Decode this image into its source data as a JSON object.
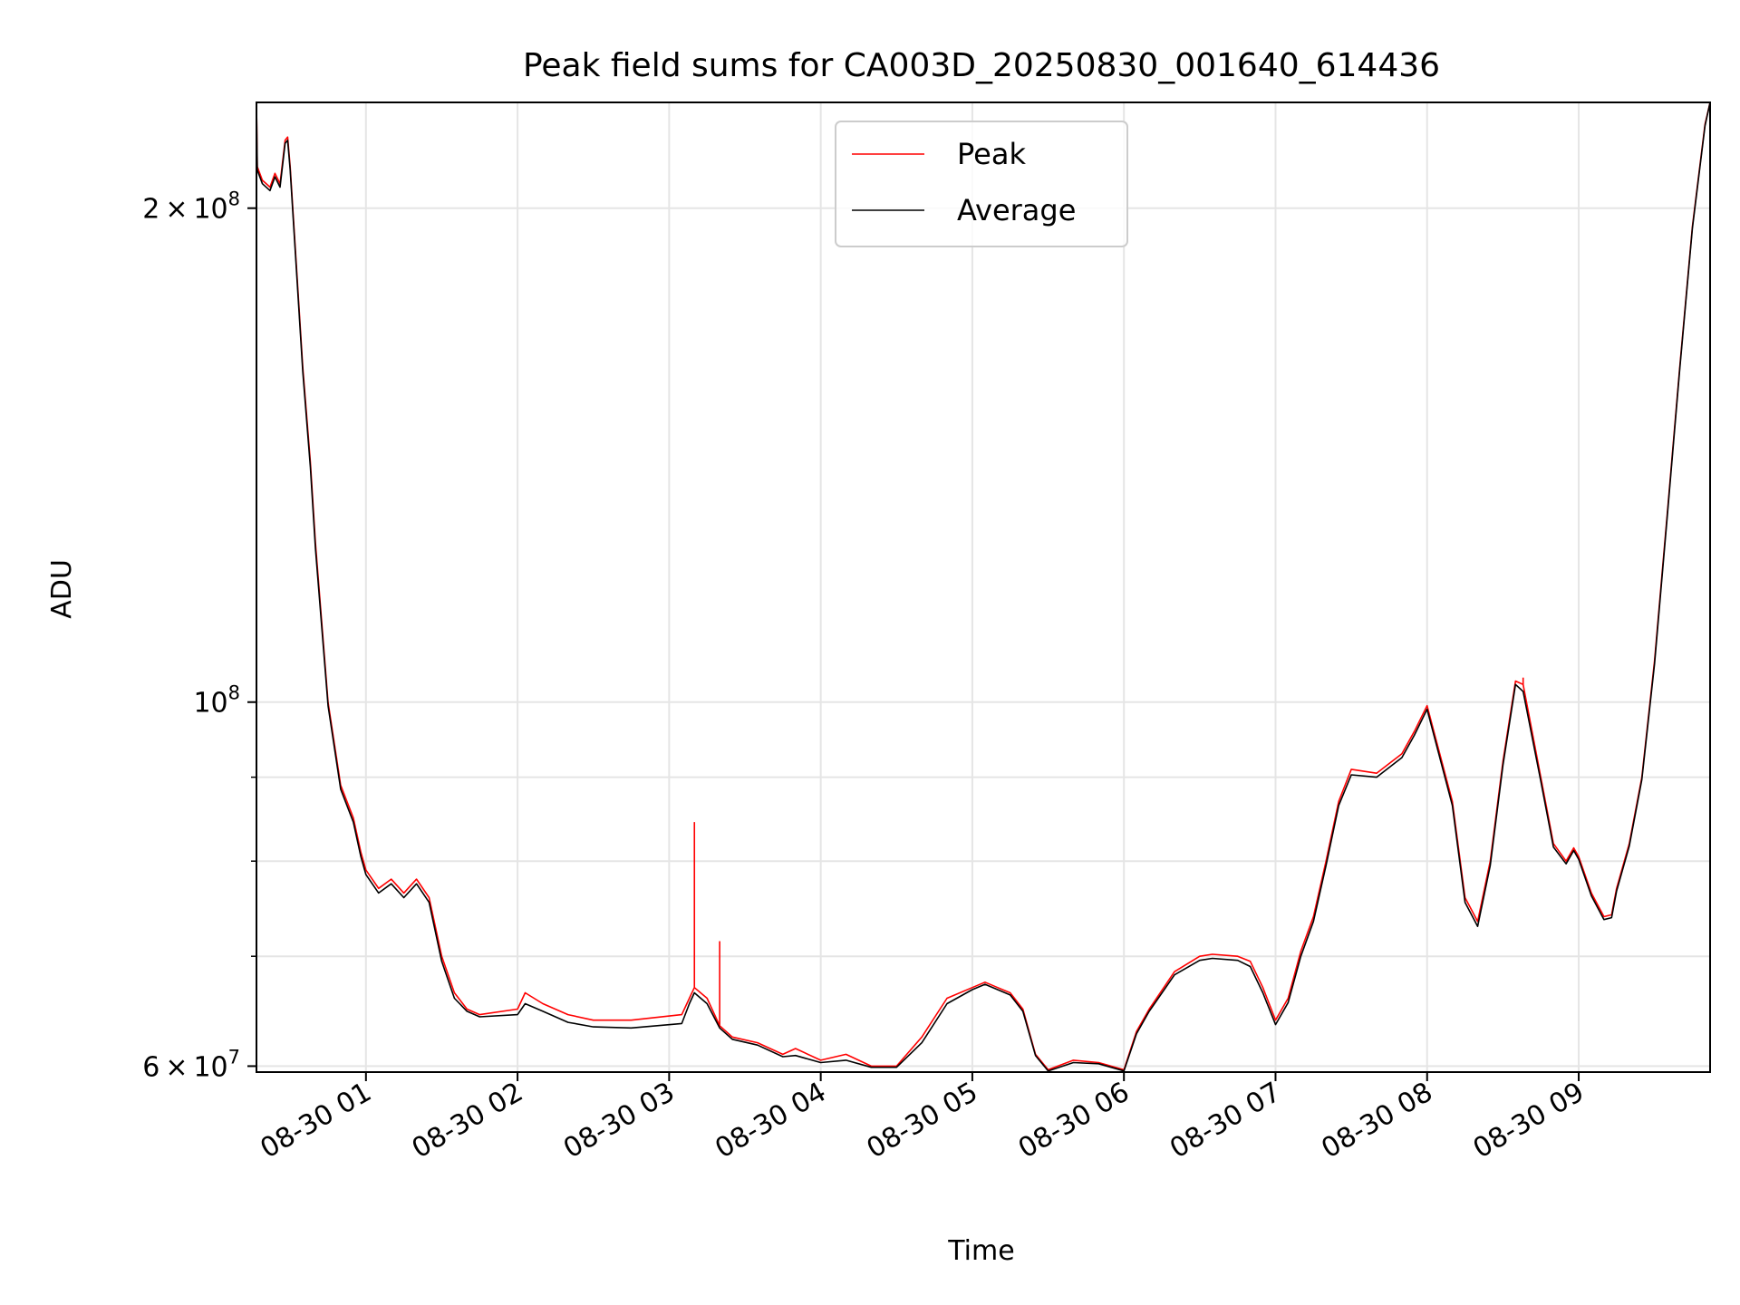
{
  "chart_data": {
    "type": "line",
    "title": "Peak field sums for CA003D_20250830_001640_614436",
    "xlabel": "Time",
    "ylabel": "ADU",
    "yscale": "log",
    "grid": true,
    "legend_loc": "upper center",
    "xlim": [
      "2025-08-30 00:16:40",
      "2025-08-30 09:52:00"
    ],
    "ylim": [
      59500000,
      232000000
    ],
    "x_ticks": [
      {
        "t": "2025-08-30 01:00",
        "label": "08-30 01"
      },
      {
        "t": "2025-08-30 02:00",
        "label": "08-30 02"
      },
      {
        "t": "2025-08-30 03:00",
        "label": "08-30 03"
      },
      {
        "t": "2025-08-30 04:00",
        "label": "08-30 04"
      },
      {
        "t": "2025-08-30 05:00",
        "label": "08-30 05"
      },
      {
        "t": "2025-08-30 06:00",
        "label": "08-30 06"
      },
      {
        "t": "2025-08-30 07:00",
        "label": "08-30 07"
      },
      {
        "t": "2025-08-30 08:00",
        "label": "08-30 08"
      },
      {
        "t": "2025-08-30 09:00",
        "label": "08-30 09"
      }
    ],
    "y_major_ticks": [
      {
        "value": 60000000,
        "mantissa": "6 × 10",
        "exp": "7"
      },
      {
        "value": 100000000,
        "mantissa": "10",
        "exp": "8"
      },
      {
        "value": 200000000,
        "mantissa": "2 × 10",
        "exp": "8"
      }
    ],
    "y_minor_ticks": [
      70000000,
      80000000,
      90000000
    ],
    "series": [
      {
        "name": "Peak",
        "color": "#ff0000",
        "x": [
          "2025-08-30 00:16:40",
          "2025-08-30 00:17:00",
          "2025-08-30 00:19:00",
          "2025-08-30 00:22:00",
          "2025-08-30 00:24:00",
          "2025-08-30 00:26:00",
          "2025-08-30 00:28:00",
          "2025-08-30 00:29:00",
          "2025-08-30 00:30:00",
          "2025-08-30 00:35:00",
          "2025-08-30 00:38:00",
          "2025-08-30 00:40:00",
          "2025-08-30 00:45:00",
          "2025-08-30 00:50:00",
          "2025-08-30 00:55:00",
          "2025-08-30 00:58:00",
          "2025-08-30 01:00:00",
          "2025-08-30 01:05:00",
          "2025-08-30 01:10:00",
          "2025-08-30 01:15:00",
          "2025-08-30 01:20:00",
          "2025-08-30 01:25:00",
          "2025-08-30 01:30:00",
          "2025-08-30 01:35:00",
          "2025-08-30 01:40:00",
          "2025-08-30 01:45:00",
          "2025-08-30 02:00:00",
          "2025-08-30 02:03:00",
          "2025-08-30 02:10:00",
          "2025-08-30 02:20:00",
          "2025-08-30 02:30:00",
          "2025-08-30 02:45:00",
          "2025-08-30 03:05:00",
          "2025-08-30 03:08:00",
          "2025-08-30 03:10:00",
          "2025-08-30 03:15:00",
          "2025-08-30 03:20:00",
          "2025-08-30 03:25:00",
          "2025-08-30 03:35:00",
          "2025-08-30 03:45:00",
          "2025-08-30 03:50:00",
          "2025-08-30 04:00:00",
          "2025-08-30 04:10:00",
          "2025-08-30 04:20:00",
          "2025-08-30 04:30:00",
          "2025-08-30 04:40:00",
          "2025-08-30 04:50:00",
          "2025-08-30 05:00:00",
          "2025-08-30 05:05:00",
          "2025-08-30 05:10:00",
          "2025-08-30 05:15:00",
          "2025-08-30 05:20:00",
          "2025-08-30 05:25:00",
          "2025-08-30 05:30:00",
          "2025-08-30 05:40:00",
          "2025-08-30 05:50:00",
          "2025-08-30 06:00:00",
          "2025-08-30 06:05:00",
          "2025-08-30 06:10:00",
          "2025-08-30 06:20:00",
          "2025-08-30 06:30:00",
          "2025-08-30 06:35:00",
          "2025-08-30 06:45:00",
          "2025-08-30 06:50:00",
          "2025-08-30 06:55:00",
          "2025-08-30 07:00:00",
          "2025-08-30 07:05:00",
          "2025-08-30 07:10:00",
          "2025-08-30 07:15:00",
          "2025-08-30 07:20:00",
          "2025-08-30 07:25:00",
          "2025-08-30 07:30:00",
          "2025-08-30 07:40:00",
          "2025-08-30 07:50:00",
          "2025-08-30 07:55:00",
          "2025-08-30 08:00:00",
          "2025-08-30 08:10:00",
          "2025-08-30 08:15:00",
          "2025-08-30 08:20:00",
          "2025-08-30 08:25:00",
          "2025-08-30 08:30:00",
          "2025-08-30 08:35:00",
          "2025-08-30 08:38:00",
          "2025-08-30 08:45:00",
          "2025-08-30 08:50:00",
          "2025-08-30 08:55:00",
          "2025-08-30 08:58:00",
          "2025-08-30 09:00:00",
          "2025-08-30 09:05:00",
          "2025-08-30 09:10:00",
          "2025-08-30 09:13:00",
          "2025-08-30 09:15:00",
          "2025-08-30 09:20:00",
          "2025-08-30 09:25:00",
          "2025-08-30 09:30:00",
          "2025-08-30 09:35:00",
          "2025-08-30 09:40:00",
          "2025-08-30 09:45:00",
          "2025-08-30 09:50:00",
          "2025-08-30 09:52:00"
        ],
        "y": [
          232000000,
          212000000,
          208000000,
          206000000,
          210000000,
          207000000,
          220000000,
          221000000,
          212000000,
          160000000,
          140000000,
          125000000,
          100000000,
          89000000,
          85000000,
          81000000,
          79000000,
          77000000,
          78000000,
          76500000,
          78000000,
          76000000,
          70000000,
          66500000,
          65000000,
          64500000,
          65000000,
          66500000,
          65500000,
          64500000,
          64000000,
          64000000,
          64500000,
          66000000,
          67000000,
          66000000,
          63500000,
          62500000,
          62000000,
          61000000,
          61500000,
          60500000,
          61000000,
          60000000,
          60000000,
          62500000,
          66000000,
          67000000,
          67500000,
          67000000,
          66500000,
          65000000,
          61000000,
          59700000,
          60500000,
          60300000,
          59700000,
          63000000,
          65000000,
          68500000,
          70000000,
          70200000,
          70000000,
          69500000,
          67000000,
          64000000,
          66000000,
          70500000,
          74000000,
          80000000,
          87000000,
          91000000,
          90500000,
          93000000,
          96000000,
          99500000,
          87000000,
          76000000,
          73500000,
          80000000,
          92000000,
          103000000,
          102500000,
          90000000,
          82000000,
          80000000,
          81500000,
          80500000,
          76500000,
          74000000,
          74200000,
          77000000,
          82000000,
          90000000,
          106000000,
          130000000,
          160000000,
          195000000,
          225000000,
          232000000
        ],
        "spikes": [
          {
            "t": "2025-08-30 03:10:00",
            "y": 84500000
          },
          {
            "t": "2025-08-30 03:20:00",
            "y": 71500000
          },
          {
            "t": "2025-08-30 08:38:00",
            "y": 103500000
          }
        ]
      },
      {
        "name": "Average",
        "color": "#000000",
        "x": [
          "2025-08-30 00:16:40",
          "2025-08-30 00:17:00",
          "2025-08-30 00:19:00",
          "2025-08-30 00:22:00",
          "2025-08-30 00:24:00",
          "2025-08-30 00:26:00",
          "2025-08-30 00:28:00",
          "2025-08-30 00:29:00",
          "2025-08-30 00:30:00",
          "2025-08-30 00:35:00",
          "2025-08-30 00:38:00",
          "2025-08-30 00:40:00",
          "2025-08-30 00:45:00",
          "2025-08-30 00:50:00",
          "2025-08-30 00:55:00",
          "2025-08-30 00:58:00",
          "2025-08-30 01:00:00",
          "2025-08-30 01:05:00",
          "2025-08-30 01:10:00",
          "2025-08-30 01:15:00",
          "2025-08-30 01:20:00",
          "2025-08-30 01:25:00",
          "2025-08-30 01:30:00",
          "2025-08-30 01:35:00",
          "2025-08-30 01:40:00",
          "2025-08-30 01:45:00",
          "2025-08-30 02:00:00",
          "2025-08-30 02:03:00",
          "2025-08-30 02:10:00",
          "2025-08-30 02:20:00",
          "2025-08-30 02:30:00",
          "2025-08-30 02:45:00",
          "2025-08-30 03:05:00",
          "2025-08-30 03:08:00",
          "2025-08-30 03:10:00",
          "2025-08-30 03:15:00",
          "2025-08-30 03:20:00",
          "2025-08-30 03:25:00",
          "2025-08-30 03:35:00",
          "2025-08-30 03:45:00",
          "2025-08-30 03:50:00",
          "2025-08-30 04:00:00",
          "2025-08-30 04:10:00",
          "2025-08-30 04:20:00",
          "2025-08-30 04:30:00",
          "2025-08-30 04:40:00",
          "2025-08-30 04:50:00",
          "2025-08-30 05:00:00",
          "2025-08-30 05:05:00",
          "2025-08-30 05:10:00",
          "2025-08-30 05:15:00",
          "2025-08-30 05:20:00",
          "2025-08-30 05:25:00",
          "2025-08-30 05:30:00",
          "2025-08-30 05:40:00",
          "2025-08-30 05:50:00",
          "2025-08-30 06:00:00",
          "2025-08-30 06:05:00",
          "2025-08-30 06:10:00",
          "2025-08-30 06:20:00",
          "2025-08-30 06:30:00",
          "2025-08-30 06:35:00",
          "2025-08-30 06:45:00",
          "2025-08-30 06:50:00",
          "2025-08-30 06:55:00",
          "2025-08-30 07:00:00",
          "2025-08-30 07:05:00",
          "2025-08-30 07:10:00",
          "2025-08-30 07:15:00",
          "2025-08-30 07:20:00",
          "2025-08-30 07:25:00",
          "2025-08-30 07:30:00",
          "2025-08-30 07:40:00",
          "2025-08-30 07:50:00",
          "2025-08-30 07:55:00",
          "2025-08-30 08:00:00",
          "2025-08-30 08:10:00",
          "2025-08-30 08:15:00",
          "2025-08-30 08:20:00",
          "2025-08-30 08:25:00",
          "2025-08-30 08:30:00",
          "2025-08-30 08:35:00",
          "2025-08-30 08:38:00",
          "2025-08-30 08:45:00",
          "2025-08-30 08:50:00",
          "2025-08-30 08:55:00",
          "2025-08-30 08:58:00",
          "2025-08-30 09:00:00",
          "2025-08-30 09:05:00",
          "2025-08-30 09:10:00",
          "2025-08-30 09:13:00",
          "2025-08-30 09:15:00",
          "2025-08-30 09:20:00",
          "2025-08-30 09:25:00",
          "2025-08-30 09:30:00",
          "2025-08-30 09:35:00",
          "2025-08-30 09:40:00",
          "2025-08-30 09:45:00",
          "2025-08-30 09:50:00",
          "2025-08-30 09:52:00"
        ],
        "y": [
          232000000,
          211000000,
          207000000,
          205000000,
          209000000,
          206000000,
          219000000,
          220000000,
          211000000,
          159000000,
          139000000,
          124000000,
          99500000,
          88500000,
          84500000,
          80500000,
          78500000,
          76500000,
          77500000,
          76000000,
          77500000,
          75500000,
          69500000,
          66000000,
          64800000,
          64300000,
          64500000,
          65500000,
          64800000,
          63800000,
          63400000,
          63300000,
          63700000,
          65500000,
          66500000,
          65500000,
          63300000,
          62300000,
          61800000,
          60800000,
          60900000,
          60300000,
          60500000,
          59900000,
          59900000,
          62000000,
          65500000,
          66800000,
          67300000,
          66800000,
          66300000,
          64800000,
          60900000,
          59600000,
          60300000,
          60200000,
          59600000,
          62800000,
          64800000,
          68200000,
          69600000,
          69800000,
          69600000,
          69000000,
          66500000,
          63600000,
          65600000,
          70000000,
          73500000,
          79500000,
          86500000,
          90300000,
          90000000,
          92500000,
          95500000,
          99000000,
          86500000,
          75500000,
          73000000,
          79500000,
          91500000,
          102500000,
          101500000,
          89500000,
          81600000,
          79700000,
          81200000,
          80200000,
          76200000,
          73700000,
          73900000,
          76700000,
          81700000,
          89700000,
          105500000,
          129500000,
          159500000,
          194500000,
          224500000,
          232000000
        ]
      }
    ]
  }
}
